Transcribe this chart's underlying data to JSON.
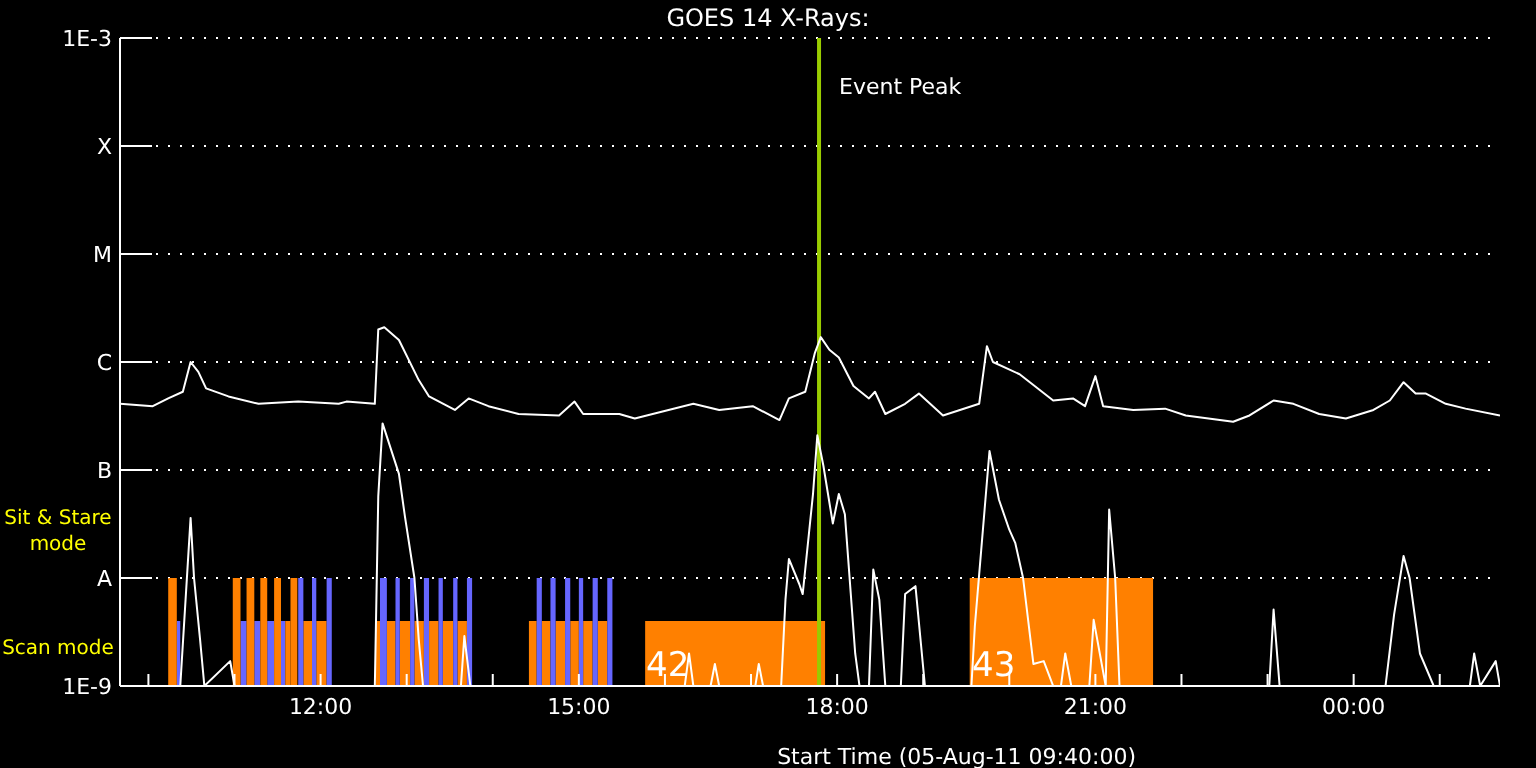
{
  "chart_data": {
    "type": "line",
    "title": "GOES 14 X-Rays:",
    "xlabel": "Start Time (05-Aug-11 09:40:00)",
    "xlim": [
      9.67,
      25.7
    ],
    "xticks": [
      {
        "value": 10,
        "label": null
      },
      {
        "value": 11,
        "label": null
      },
      {
        "value": 12,
        "label": "12:00"
      },
      {
        "value": 13,
        "label": null
      },
      {
        "value": 14,
        "label": null
      },
      {
        "value": 15,
        "label": "15:00"
      },
      {
        "value": 16,
        "label": null
      },
      {
        "value": 17,
        "label": null
      },
      {
        "value": 18,
        "label": "18:00"
      },
      {
        "value": 19,
        "label": null
      },
      {
        "value": 20,
        "label": null
      },
      {
        "value": 21,
        "label": "21:00"
      },
      {
        "value": 22,
        "label": null
      },
      {
        "value": 23,
        "label": null
      },
      {
        "value": 24,
        "label": "00:00"
      },
      {
        "value": 25,
        "label": null
      }
    ],
    "ylim": [
      1e-09,
      0.001
    ],
    "yticks": [
      {
        "value": 1e-09,
        "label": "1E-9"
      },
      {
        "value": 1e-08,
        "label": "A"
      },
      {
        "value": 1e-07,
        "label": "B"
      },
      {
        "value": 1e-06,
        "label": "C"
      },
      {
        "value": 1e-05,
        "label": "M"
      },
      {
        "value": 0.0001,
        "label": "X"
      },
      {
        "value": 0.001,
        "label": "1E-3"
      }
    ],
    "log": "y",
    "grid": "y",
    "marker": "none",
    "ref_lines": [
      {
        "axis": "x",
        "value": 17.79,
        "label": "Event Peak",
        "color": "#99cc00"
      }
    ],
    "annotations": [
      "Sit & Stare mode",
      "Scan mode",
      "42",
      "43"
    ],
    "series": [
      {
        "type": "histogram",
        "bins": [
          10.33,
          10.37,
          11.07,
          11.14,
          11.23,
          11.3,
          11.38,
          11.46,
          11.54,
          11.59,
          11.65,
          11.8,
          11.9,
          11.95,
          12.07,
          12.64,
          12.69,
          12.77,
          12.87,
          12.92,
          13.04,
          13.09,
          13.2,
          13.26,
          13.37,
          13.42,
          13.54,
          13.59,
          13.7,
          14.42,
          14.51,
          14.57,
          14.67,
          14.73,
          14.84,
          14.9,
          15.0,
          15.05,
          15.16,
          15.22,
          15.33,
          15.77,
          17.86
        ],
        "values": [
          4e-09,
          null,
          4e-09,
          null,
          4e-09,
          null,
          4e-09,
          null,
          4e-09,
          4e-09,
          null,
          4e-09,
          null,
          4e-09,
          null,
          4e-09,
          null,
          4e-09,
          null,
          4e-09,
          null,
          4e-09,
          null,
          4e-09,
          null,
          4e-09,
          null,
          4e-09,
          null,
          4e-09,
          null,
          4e-09,
          null,
          4e-09,
          null,
          4e-09,
          null,
          4e-09,
          null,
          4e-09,
          null,
          4e-09
        ],
        "colors": [
          "#6666ff",
          null,
          "#6666ff",
          null,
          "#6666ff",
          null,
          "#6666ff",
          null,
          "#6666ff",
          "#ff8000",
          null,
          "#ff8000",
          null,
          "#ff8000",
          null,
          "#ff8000",
          null,
          "#ff8000",
          null,
          "#ff8000",
          null,
          "#ff8000",
          null,
          "#ff8000",
          null,
          "#ff8000",
          null,
          "#ff8000",
          null,
          "#ff8000",
          null,
          "#ff8000",
          null,
          "#ff8000",
          null,
          "#ff8000",
          null,
          "#ff8000",
          null,
          "#ff8000",
          null,
          "#ff8000"
        ]
      },
      {
        "type": "histogram",
        "bins": [
          10.23,
          10.33,
          10.98,
          11.07,
          11.14,
          11.23,
          11.3,
          11.38,
          11.46,
          11.54,
          11.65,
          11.73,
          11.74,
          11.8,
          11.9,
          11.95,
          12.07,
          12.13,
          12.69,
          12.77,
          12.87,
          12.92,
          13.04,
          13.09,
          13.2,
          13.26,
          13.37,
          13.42,
          13.54,
          13.59,
          13.7,
          13.76,
          14.51,
          14.57,
          14.67,
          14.73,
          14.84,
          14.9,
          15.0,
          15.05,
          15.16,
          15.22,
          15.33,
          15.39,
          19.54,
          21.67
        ],
        "values": [
          1e-08,
          null,
          1e-08,
          null,
          1e-08,
          null,
          1e-08,
          null,
          1e-08,
          null,
          1e-08,
          null,
          1e-08,
          null,
          1e-08,
          null,
          1e-08,
          null,
          1e-08,
          null,
          1e-08,
          null,
          1e-08,
          null,
          1e-08,
          null,
          1e-08,
          null,
          1e-08,
          null,
          1e-08,
          null,
          1e-08,
          null,
          1e-08,
          null,
          1e-08,
          null,
          1e-08,
          null,
          1e-08,
          null,
          1e-08,
          null,
          1e-08
        ],
        "colors": [
          "#ff8000",
          null,
          "#ff8000",
          null,
          "#ff8000",
          null,
          "#ff8000",
          null,
          "#ff8000",
          null,
          "#ff8000",
          null,
          "#6666ff",
          null,
          "#6666ff",
          null,
          "#6666ff",
          null,
          "#6666ff",
          null,
          "#6666ff",
          null,
          "#6666ff",
          null,
          "#6666ff",
          null,
          "#6666ff",
          null,
          "#6666ff",
          null,
          "#6666ff",
          null,
          "#6666ff",
          null,
          "#6666ff",
          null,
          "#6666ff",
          null,
          "#6666ff",
          null,
          "#6666ff",
          null,
          "#6666ff",
          null,
          "#ff8000"
        ]
      },
      {
        "color": "#ffffff",
        "x": [
          9.67,
          10.05,
          10.23,
          10.4,
          10.49,
          10.58,
          10.67,
          10.93,
          11.28,
          11.74,
          12.21,
          12.3,
          12.63,
          12.67,
          12.74,
          12.91,
          13.14,
          13.26,
          13.56,
          13.72,
          13.95,
          14.3,
          14.77,
          14.95,
          15.05,
          15.47,
          15.65,
          16.33,
          16.63,
          17.02,
          17.33,
          17.44,
          17.63,
          17.74,
          17.81,
          17.91,
          18.02,
          18.19,
          18.37,
          18.44,
          18.56,
          18.79,
          18.95,
          19.23,
          19.65,
          19.74,
          19.81,
          20.12,
          20.51,
          20.74,
          20.88,
          21.0,
          21.09,
          21.44,
          21.81,
          22.05,
          22.6,
          22.79,
          23.07,
          23.3,
          23.6,
          23.91,
          24.23,
          24.42,
          24.58,
          24.72,
          24.84,
          25.07,
          25.3,
          25.7
        ],
        "values": [
          4.1e-07,
          3.9e-07,
          4.6e-07,
          5.3e-07,
          1e-06,
          8.1e-07,
          5.7e-07,
          4.8e-07,
          4.1e-07,
          4.3e-07,
          4.1e-07,
          4.3e-07,
          4.1e-07,
          2e-06,
          2.1e-06,
          1.6e-06,
          6.8e-07,
          4.8e-07,
          3.6e-07,
          4.6e-07,
          3.9e-07,
          3.3e-07,
          3.2e-07,
          4.3e-07,
          3.3e-07,
          3.3e-07,
          3e-07,
          4.1e-07,
          3.6e-07,
          3.9e-07,
          2.9e-07,
          4.6e-07,
          5.3e-07,
          1.2e-06,
          1.7e-06,
          1.3e-06,
          1.1e-06,
          6e-07,
          4.6e-07,
          5.3e-07,
          3.3e-07,
          4.1e-07,
          5.1e-07,
          3.2e-07,
          4.1e-07,
          1.4e-06,
          1e-06,
          7.7e-07,
          4.4e-07,
          4.6e-07,
          3.9e-07,
          7.4e-07,
          3.9e-07,
          3.6e-07,
          3.7e-07,
          3.2e-07,
          2.8e-07,
          3.2e-07,
          4.4e-07,
          4.1e-07,
          3.3e-07,
          3e-07,
          3.6e-07,
          4.4e-07,
          6.5e-07,
          5.1e-07,
          5.1e-07,
          4.1e-07,
          3.7e-07,
          3.2e-07
        ]
      },
      {
        "color": "#ffffff",
        "x": [
          9.67,
          10.37,
          10.49,
          10.53,
          10.6,
          10.65,
          10.95,
          11.0,
          12.63,
          12.67,
          12.72,
          12.91,
          12.98,
          13.09,
          13.14,
          13.19,
          13.63,
          13.67,
          13.74,
          16.23,
          16.28,
          16.33,
          16.53,
          16.58,
          16.63,
          17.05,
          17.09,
          17.14,
          17.35,
          17.4,
          17.44,
          17.56,
          17.6,
          17.72,
          17.77,
          17.84,
          17.95,
          18.02,
          18.09,
          18.21,
          18.26,
          18.37,
          18.42,
          18.49,
          18.56,
          18.74,
          18.79,
          18.91,
          19.02,
          19.56,
          19.6,
          19.77,
          19.88,
          20.0,
          20.07,
          20.16,
          20.28,
          20.4,
          20.51,
          20.6,
          20.65,
          20.72,
          20.93,
          20.98,
          21.12,
          21.16,
          21.23,
          21.28,
          23.02,
          23.07,
          23.14,
          24.37,
          24.47,
          24.58,
          24.65,
          24.77,
          24.93,
          25.35,
          25.4,
          25.47,
          25.65,
          25.7
        ],
        "values": [
          1e-09,
          1e-09,
          3.6e-08,
          1e-08,
          2.7e-09,
          1e-09,
          1.7e-09,
          1e-09,
          1e-09,
          5.7e-08,
          2.7e-07,
          9.2e-08,
          3.7e-08,
          1e-08,
          2.7e-09,
          1e-09,
          1e-09,
          2.9e-09,
          1e-09,
          1e-09,
          2e-09,
          1e-09,
          1e-09,
          1.6e-09,
          1e-09,
          1e-09,
          1.6e-09,
          1e-09,
          1e-09,
          6.3e-09,
          1.5e-08,
          8.8e-09,
          7.1e-09,
          6e-08,
          2.1e-07,
          1.1e-07,
          3.2e-08,
          6e-08,
          3.9e-08,
          2e-09,
          1e-09,
          1e-09,
          1.2e-08,
          6.3e-09,
          1e-09,
          1e-09,
          7.1e-09,
          8.4e-09,
          1e-09,
          1e-09,
          3.6e-09,
          1.5e-07,
          5.3e-08,
          2.8e-08,
          2.1e-08,
          1e-08,
          1.6e-09,
          1.7e-09,
          1e-09,
          1e-09,
          2e-09,
          1e-09,
          1e-09,
          4.1e-09,
          1e-09,
          4.3e-08,
          1e-08,
          1e-09,
          1e-09,
          5.1e-09,
          1e-09,
          1e-09,
          4.6e-09,
          1.6e-08,
          1e-08,
          2e-09,
          1e-09,
          1e-09,
          2e-09,
          1e-09,
          1.7e-09,
          1e-09
        ]
      }
    ]
  }
}
